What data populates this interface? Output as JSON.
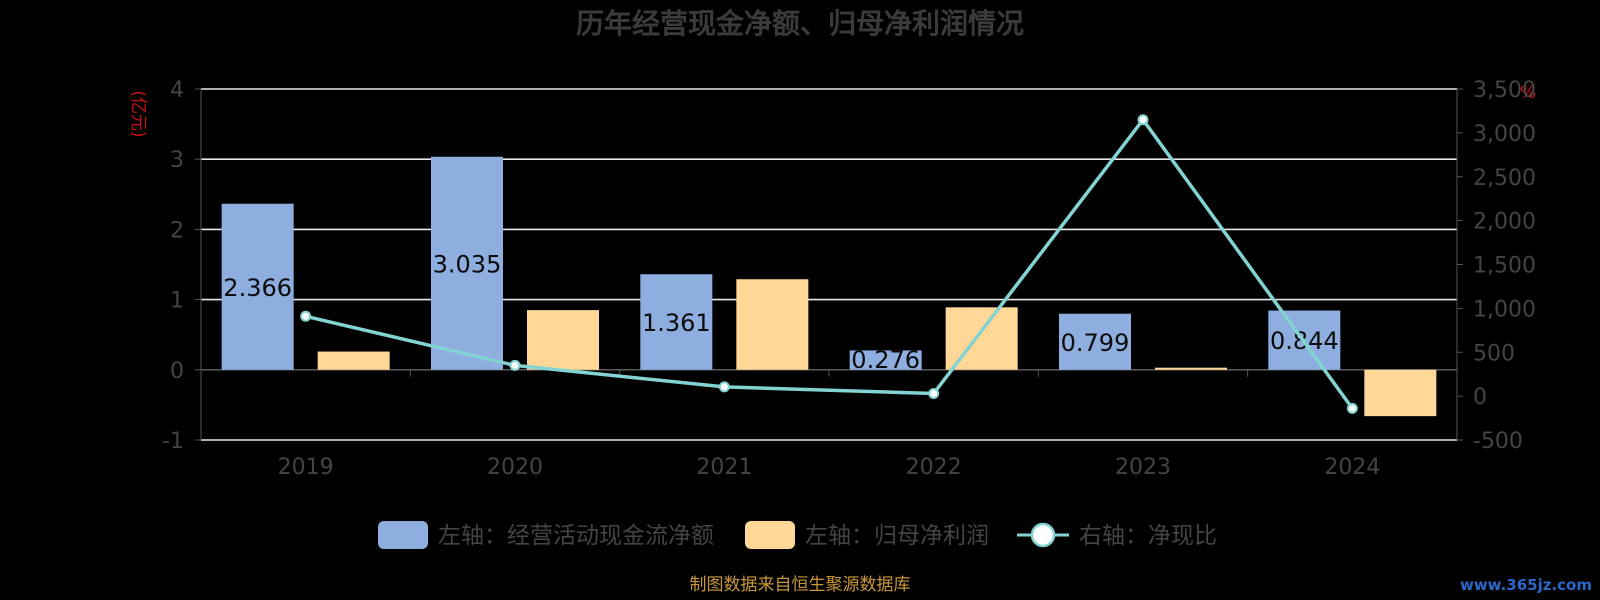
{
  "chart_data": {
    "type": "bar",
    "title": "历年经营现金净额、归母净利润情况",
    "categories": [
      "2019",
      "2020",
      "2021",
      "2022",
      "2023",
      "2024"
    ],
    "left_axis": {
      "unit": "(亿元)",
      "ylim": [
        -1,
        4
      ],
      "ticks": [
        "4",
        "3",
        "2",
        "1",
        "0",
        "-1"
      ],
      "tick_values": [
        4,
        3,
        2,
        1,
        0,
        -1
      ]
    },
    "right_axis": {
      "unit": "%",
      "ylim": [
        -500,
        3500
      ],
      "ticks": [
        "3,500",
        "3,000",
        "2,500",
        "2,000",
        "1,500",
        "1,000",
        "500",
        "0",
        "-500"
      ],
      "tick_values": [
        3500,
        3000,
        2500,
        2000,
        1500,
        1000,
        500,
        0,
        -500
      ]
    },
    "series": [
      {
        "name": "左轴：经营活动现金流净额",
        "type": "bar",
        "axis": "left",
        "color": "#8eaee0",
        "values": [
          2.366,
          3.035,
          1.361,
          0.276,
          0.799,
          0.844
        ],
        "labels": [
          "2.366",
          "3.035",
          "1.361",
          "0.276",
          "0.799",
          "0.844"
        ]
      },
      {
        "name": "左轴：归母净利润",
        "type": "bar",
        "axis": "left",
        "color": "#ffd796",
        "values": [
          0.26,
          0.85,
          1.29,
          0.89,
          0.03,
          -0.66
        ]
      },
      {
        "name": "右轴：净现比",
        "type": "line",
        "axis": "right",
        "color": "#82d3d2",
        "values": [
          910,
          350,
          105,
          30,
          3150,
          -140
        ]
      }
    ],
    "grid": true,
    "legend_position": "bottom"
  },
  "footer": "制图数据来自恒生聚源数据库",
  "watermark": "www.365jz.com"
}
